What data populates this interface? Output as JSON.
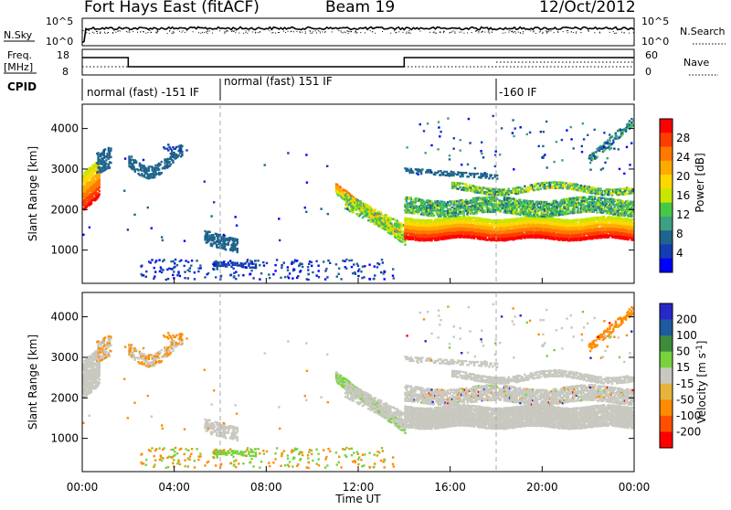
{
  "header": {
    "station": "Fort Hays East (fitACF)",
    "beam": "Beam 19",
    "date": "12/Oct/2012"
  },
  "top_panels": {
    "nsky_label": "N.Sky",
    "nsearch_label": "N.Search",
    "freq_label_1": "Freq.",
    "freq_label_2": "[MHz]",
    "nave_label": "Nave",
    "cpid_label": "CPID",
    "nsky_ticks": [
      "10^5",
      "10^0"
    ],
    "nsearch_ticks": [
      "10^5",
      "10^0"
    ],
    "freq_ticks": [
      "18",
      "8"
    ],
    "nave_ticks": [
      "60",
      "0"
    ],
    "cpid_segments": [
      {
        "label": "normal (fast) -151 IF",
        "start_hour": 0,
        "end_hour": 6
      },
      {
        "label": "normal (fast) 151 IF",
        "start_hour": 6,
        "end_hour": 18
      },
      {
        "label": "-160 IF",
        "start_hour": 18,
        "end_hour": 24
      }
    ]
  },
  "chart_data": [
    {
      "type": "heatmap",
      "name": "power",
      "ylabel": "Slant Range [km]",
      "yticks": [
        1000,
        2000,
        3000,
        4000
      ],
      "ylim": [
        180,
        4600
      ],
      "xlim": [
        0,
        24
      ],
      "colorbar": {
        "label": "Power [dB]",
        "ticks": [
          "28",
          "24",
          "20",
          "16",
          "12",
          "8",
          "4"
        ],
        "colors": [
          "#ff0000",
          "#ff3c00",
          "#ff7800",
          "#ffaa00",
          "#ffd700",
          "#c8e600",
          "#46c846",
          "#3ca082",
          "#1e648c",
          "#143cb4",
          "#0000ff"
        ]
      }
    },
    {
      "type": "heatmap",
      "name": "velocity",
      "ylabel": "Slant Range [km]",
      "yticks": [
        1000,
        2000,
        3000,
        4000
      ],
      "ylim": [
        180,
        4600
      ],
      "xlim": [
        0,
        24
      ],
      "xlabel": "Time UT",
      "xticks": [
        "00:00",
        "04:00",
        "08:00",
        "12:00",
        "16:00",
        "20:00",
        "00:00"
      ],
      "colorbar": {
        "label": "Velocity [m s",
        "label_sup": "-1",
        "label_end": "]",
        "ticks": [
          "200",
          "100",
          "50",
          "15",
          "-15",
          "-50",
          "-100",
          "-200"
        ],
        "colors": [
          "#2828c8",
          "#1e5aa0",
          "#3c8c3c",
          "#78d23c",
          "#c8c8c0",
          "#e6b43c",
          "#ff8c00",
          "#ff5000",
          "#ff0000"
        ]
      }
    }
  ],
  "colors": {
    "ground_scatter": "#c8c8c0"
  }
}
